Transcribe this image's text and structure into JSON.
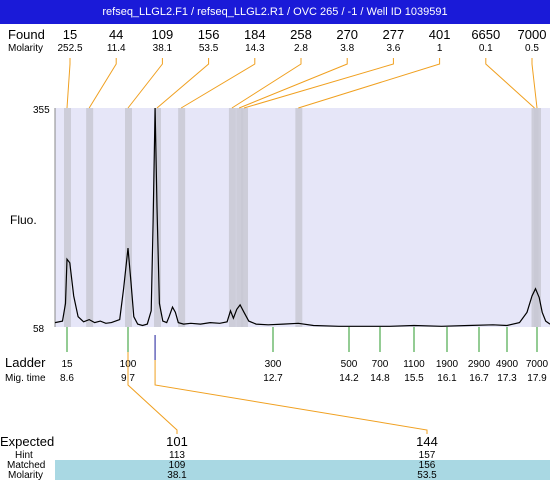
{
  "title": "refseq_LLGL2.F1 / refseq_LLGL2.R1 / OVC 265 / -1 / Well ID 1039591",
  "labels": {
    "found": "Found",
    "molarity": "Molarity",
    "fluo": "Fluo.",
    "ladder": "Ladder",
    "mig_time": "Mig. time",
    "expected": "Expected",
    "hint": "Hint",
    "matched": "Matched",
    "molarity_bottom": "Molarity"
  },
  "colors": {
    "title_bg": "#1a1ad8",
    "plot_bg": "#e6e6f8",
    "band": "#c8c8d4",
    "connector": "#f0a020",
    "ladder_tick": "#2a9a2a",
    "table_highlight": "#a9d8e3",
    "trace": "#000000"
  },
  "chart_data": {
    "type": "line",
    "x_axis": "migration time",
    "y_axis_label": "Fluo.",
    "ylim": [
      58,
      355
    ],
    "y_ticks": [
      355,
      58
    ],
    "found_peaks": [
      {
        "size": "15",
        "molarity": "252.5",
        "time": 8.6
      },
      {
        "size": "44",
        "molarity": "11.4",
        "time": 9.0
      },
      {
        "size": "109",
        "molarity": "38.1",
        "time": 9.7
      },
      {
        "size": "156",
        "molarity": "53.5",
        "time": 10.3
      },
      {
        "size": "184",
        "molarity": "14.3",
        "time": 10.8
      },
      {
        "size": "258",
        "molarity": "2.8",
        "time": 11.85
      },
      {
        "size": "270",
        "molarity": "3.8",
        "time": 12.0
      },
      {
        "size": "277",
        "molarity": "3.6",
        "time": 12.1
      },
      {
        "size": "401",
        "molarity": "1",
        "time": 13.2
      },
      {
        "size": "6650",
        "molarity": "0.1",
        "time": 17.85
      },
      {
        "size": "7000",
        "molarity": "0.5",
        "time": 17.9
      }
    ],
    "ladder": [
      {
        "size": "15",
        "time": "8.6"
      },
      {
        "size": "100",
        "time": "9.7"
      },
      {
        "size": "300",
        "time": "12.7"
      },
      {
        "size": "500",
        "time": "14.2"
      },
      {
        "size": "700",
        "time": "14.8"
      },
      {
        "size": "1100",
        "time": "15.5"
      },
      {
        "size": "1900",
        "time": "16.1"
      },
      {
        "size": "2900",
        "time": "16.7"
      },
      {
        "size": "4900",
        "time": "17.3"
      },
      {
        "size": "7000",
        "time": "17.9"
      }
    ],
    "trace": [
      [
        8.2,
        64
      ],
      [
        8.45,
        66
      ],
      [
        8.55,
        90
      ],
      [
        8.6,
        150
      ],
      [
        8.65,
        145
      ],
      [
        8.72,
        100
      ],
      [
        8.8,
        72
      ],
      [
        8.9,
        65
      ],
      [
        9.0,
        68
      ],
      [
        9.1,
        64
      ],
      [
        9.2,
        66
      ],
      [
        9.3,
        63
      ],
      [
        9.4,
        64
      ],
      [
        9.55,
        68
      ],
      [
        9.62,
        110
      ],
      [
        9.7,
        165
      ],
      [
        9.76,
        120
      ],
      [
        9.82,
        72
      ],
      [
        9.9,
        62
      ],
      [
        10.0,
        60
      ],
      [
        10.1,
        62
      ],
      [
        10.18,
        80
      ],
      [
        10.22,
        200
      ],
      [
        10.26,
        355
      ],
      [
        10.3,
        220
      ],
      [
        10.35,
        90
      ],
      [
        10.42,
        66
      ],
      [
        10.5,
        64
      ],
      [
        10.55,
        72
      ],
      [
        10.62,
        85
      ],
      [
        10.68,
        78
      ],
      [
        10.74,
        64
      ],
      [
        10.85,
        62
      ],
      [
        11.0,
        63
      ],
      [
        11.2,
        62
      ],
      [
        11.4,
        64
      ],
      [
        11.6,
        63
      ],
      [
        11.75,
        65
      ],
      [
        11.82,
        80
      ],
      [
        11.88,
        70
      ],
      [
        11.95,
        82
      ],
      [
        12.02,
        88
      ],
      [
        12.1,
        78
      ],
      [
        12.2,
        66
      ],
      [
        12.35,
        62
      ],
      [
        12.6,
        61
      ],
      [
        12.9,
        62
      ],
      [
        13.2,
        63
      ],
      [
        13.5,
        60
      ],
      [
        14.0,
        59
      ],
      [
        14.5,
        59
      ],
      [
        15.0,
        59
      ],
      [
        15.5,
        60
      ],
      [
        16.0,
        59
      ],
      [
        16.5,
        60
      ],
      [
        17.0,
        61
      ],
      [
        17.3,
        60
      ],
      [
        17.55,
        64
      ],
      [
        17.7,
        78
      ],
      [
        17.8,
        100
      ],
      [
        17.87,
        110
      ],
      [
        17.95,
        98
      ],
      [
        18.02,
        78
      ],
      [
        18.1,
        66
      ],
      [
        18.2,
        62
      ]
    ]
  },
  "expected_table": [
    {
      "expected": "101",
      "hint": "113",
      "matched": "109",
      "molarity": "38.1"
    },
    {
      "expected": "144",
      "hint": "157",
      "matched": "156",
      "molarity": "53.5"
    }
  ]
}
